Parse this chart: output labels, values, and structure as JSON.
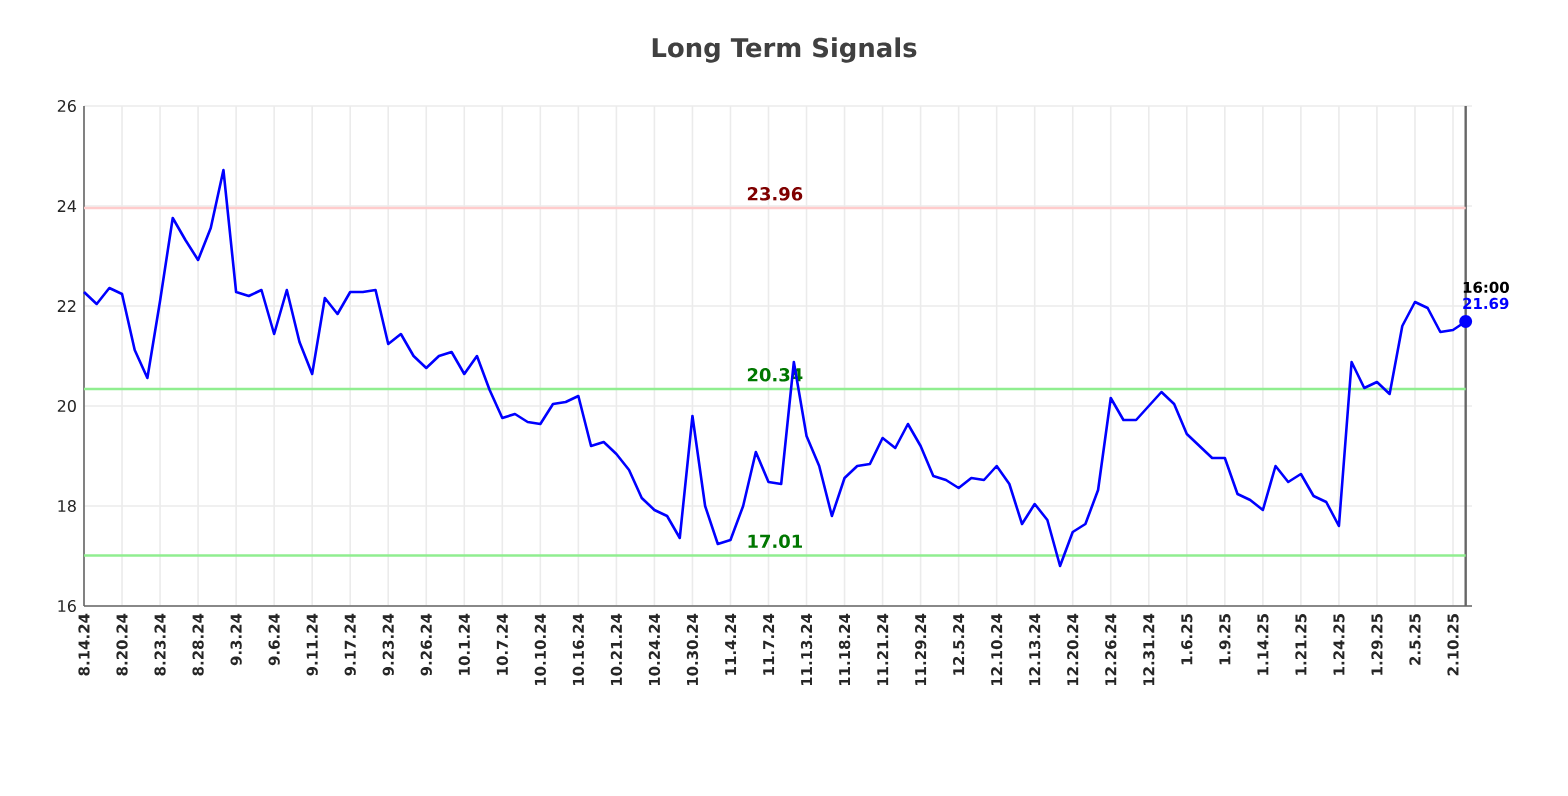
{
  "chart_data": {
    "type": "line",
    "title": "Long Term Signals",
    "categories": [
      "8.14.24",
      null,
      null,
      "8.20.24",
      null,
      null,
      "8.23.24",
      null,
      null,
      "8.28.24",
      null,
      null,
      "9.3.24",
      null,
      null,
      "9.6.24",
      null,
      null,
      "9.11.24",
      null,
      null,
      "9.17.24",
      null,
      null,
      "9.23.24",
      null,
      null,
      "9.26.24",
      null,
      null,
      "10.1.24",
      null,
      null,
      "10.7.24",
      null,
      null,
      "10.10.24",
      null,
      null,
      "10.16.24",
      null,
      null,
      "10.21.24",
      null,
      null,
      "10.24.24",
      null,
      null,
      "10.30.24",
      null,
      null,
      "11.4.24",
      null,
      null,
      "11.7.24",
      null,
      null,
      "11.13.24",
      null,
      null,
      "11.18.24",
      null,
      null,
      "11.21.24",
      null,
      null,
      "11.29.24",
      null,
      null,
      "12.5.24",
      null,
      null,
      "12.10.24",
      null,
      null,
      "12.13.24",
      null,
      null,
      "12.20.24",
      null,
      null,
      "12.26.24",
      null,
      null,
      "12.31.24",
      null,
      null,
      "1.6.25",
      null,
      null,
      "1.9.25",
      null,
      null,
      "1.14.25",
      null,
      null,
      "1.21.25",
      null,
      null,
      "1.24.25",
      null,
      null,
      "1.29.25",
      null,
      null,
      "2.5.25",
      null,
      null,
      "2.10.25",
      null
    ],
    "series": [
      {
        "color": "#0000ff",
        "values": [
          22.28,
          22.04,
          22.36,
          22.24,
          21.12,
          20.56,
          22.1,
          23.76,
          23.32,
          22.92,
          23.56,
          24.72,
          22.28,
          22.2,
          22.32,
          21.44,
          22.32,
          21.28,
          20.64,
          22.16,
          21.84,
          22.28,
          22.28,
          22.32,
          21.24,
          21.44,
          21.0,
          20.76,
          21.0,
          21.08,
          20.64,
          21.0,
          20.32,
          19.76,
          19.84,
          19.68,
          19.64,
          20.04,
          20.08,
          20.2,
          19.2,
          19.28,
          19.04,
          18.72,
          18.16,
          17.92,
          17.8,
          17.36,
          19.8,
          18.0,
          17.24,
          17.32,
          18.0,
          19.08,
          18.48,
          18.44,
          20.88,
          19.4,
          18.8,
          17.8,
          18.56,
          18.8,
          18.84,
          19.36,
          19.16,
          19.64,
          19.2,
          18.6,
          18.52,
          18.36,
          18.56,
          18.52,
          18.8,
          18.44,
          17.64,
          18.04,
          17.72,
          16.8,
          17.48,
          17.64,
          18.32,
          20.16,
          19.72,
          19.72,
          20.0,
          20.28,
          20.04,
          19.44,
          19.2,
          18.96,
          18.96,
          18.24,
          18.12,
          17.92,
          18.8,
          18.48,
          18.64,
          18.2,
          18.08,
          17.6,
          20.88,
          20.36,
          20.48,
          20.24,
          21.6,
          22.08,
          21.96,
          21.48,
          21.52,
          21.69
        ],
        "value_labels": [
          null,
          null,
          null,
          null,
          null,
          null,
          null,
          null,
          null,
          null,
          null,
          null,
          null,
          null,
          null,
          null,
          null,
          null,
          null,
          null,
          null,
          null,
          null,
          null,
          null,
          null,
          null,
          null,
          null,
          null,
          null,
          null,
          null,
          null,
          null,
          null,
          null,
          null,
          null,
          null,
          null,
          null,
          null,
          null,
          null,
          null,
          null,
          null,
          null,
          null,
          null,
          null,
          null,
          null,
          null,
          null,
          null,
          null,
          null,
          null,
          null,
          null,
          null,
          null,
          null,
          null,
          null,
          null,
          null,
          null,
          null,
          null,
          null,
          null,
          null,
          null,
          null,
          null,
          null,
          null,
          null,
          null,
          null,
          null,
          null,
          null,
          null,
          null,
          null,
          null,
          null,
          null,
          null,
          null,
          null,
          null,
          null,
          null,
          null,
          null,
          null,
          null,
          null,
          null,
          null,
          null,
          null,
          null,
          null,
          "21.69"
        ]
      }
    ],
    "ylim": [
      16,
      26
    ],
    "yticks": [
      16,
      18,
      20,
      22,
      24,
      26
    ],
    "grid": true,
    "marker": "none",
    "line_style": "solid",
    "ref_lines": [
      {
        "axis": "y",
        "value": 23.96,
        "label": "23.96",
        "color": "#ffcccc"
      },
      {
        "axis": "y",
        "value": 20.34,
        "label": "20.34",
        "color": "#90ee90"
      },
      {
        "axis": "y",
        "value": 17.01,
        "label": "17.01",
        "color": "#90ee90"
      }
    ],
    "annotations": [
      "16:00"
    ]
  }
}
